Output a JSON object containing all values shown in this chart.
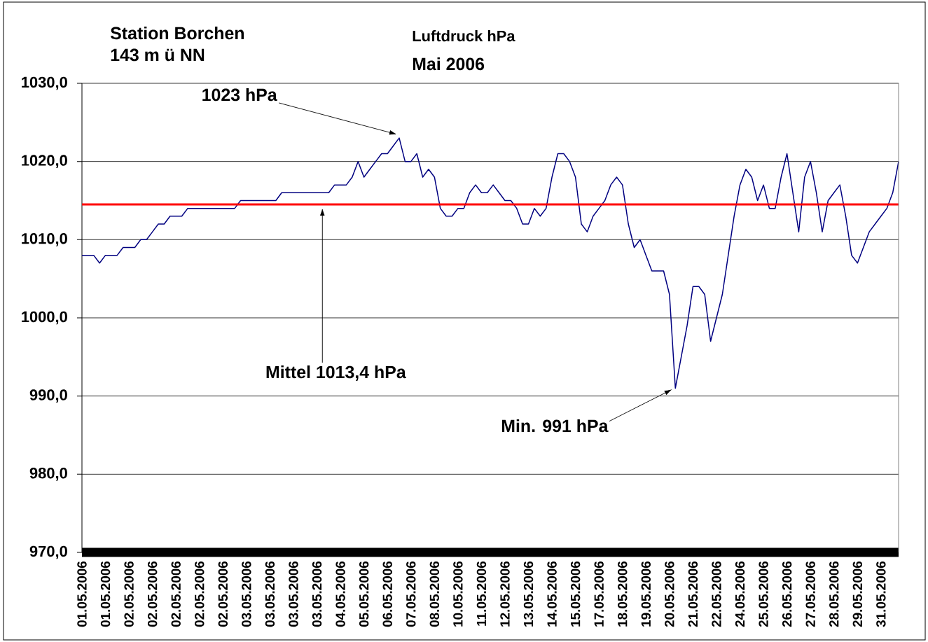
{
  "chart_data": {
    "type": "line",
    "title": "Luftdruck hPa",
    "subtitle": "Mai 2006",
    "categories": [
      "01.05.2006",
      null,
      null,
      null,
      "01.05.2006",
      null,
      null,
      null,
      "02.05.2006",
      null,
      null,
      null,
      "02.05.2006",
      null,
      null,
      null,
      "02.05.2006",
      null,
      null,
      null,
      "02.05.2006",
      null,
      null,
      null,
      "02.05.2006",
      null,
      null,
      null,
      "03.05.2006",
      null,
      null,
      null,
      "03.05.2006",
      null,
      null,
      null,
      "03.05.2006",
      null,
      null,
      null,
      "03.05.2006",
      null,
      null,
      null,
      "04.05.2006",
      null,
      null,
      null,
      "05.05.2006",
      null,
      null,
      null,
      "06.05.2006",
      null,
      null,
      null,
      "07.05.2006",
      null,
      null,
      null,
      "08.05.2006",
      null,
      null,
      null,
      "10.05.2006",
      null,
      null,
      null,
      "11.05.2006",
      null,
      null,
      null,
      "12.05.2006",
      null,
      null,
      null,
      "13.05.2006",
      null,
      null,
      null,
      "14.05.2006",
      null,
      null,
      null,
      "15.05.2006",
      null,
      null,
      null,
      "17.05.2006",
      null,
      null,
      null,
      "18.05.2006",
      null,
      null,
      null,
      "19.05.2006",
      null,
      null,
      null,
      "20.05.2006",
      null,
      null,
      null,
      "21.05.2006",
      null,
      null,
      null,
      "22.05.2006",
      null,
      null,
      null,
      "24.05.2006",
      null,
      null,
      null,
      "25.05.2006",
      null,
      null,
      null,
      "26.05.2006",
      null,
      null,
      null,
      "27.05.2006",
      null,
      null,
      null,
      "28.05.2006",
      null,
      null,
      null,
      "29.05.2006",
      null,
      null,
      null,
      "31.05.2006",
      null,
      null,
      null
    ],
    "series": [
      {
        "color": "#000080",
        "values": [
          1008,
          1008,
          1008,
          1007,
          1008,
          1008,
          1008,
          1009,
          1009,
          1009,
          1010,
          1010,
          1011,
          1012,
          1012,
          1013,
          1013,
          1013,
          1014,
          1014,
          1014,
          1014,
          1014,
          1014,
          1014,
          1014,
          1014,
          1015,
          1015,
          1015,
          1015,
          1015,
          1015,
          1015,
          1016,
          1016,
          1016,
          1016,
          1016,
          1016,
          1016,
          1016,
          1016,
          1017,
          1017,
          1017,
          1018,
          1020,
          1018,
          1019,
          1020,
          1021,
          1021,
          1022,
          1023,
          1020,
          1020,
          1021,
          1018,
          1019,
          1018,
          1014,
          1013,
          1013,
          1014,
          1014,
          1016,
          1017,
          1016,
          1016,
          1017,
          1016,
          1015,
          1015,
          1014,
          1012,
          1012,
          1014,
          1013,
          1014,
          1018,
          1021,
          1021,
          1020,
          1018,
          1012,
          1011,
          1013,
          1014,
          1015,
          1017,
          1018,
          1017,
          1012,
          1009,
          1010,
          1008,
          1006,
          1006,
          1006,
          1003,
          991,
          995,
          999,
          1004,
          1004,
          1003,
          997,
          1000,
          1003,
          1008,
          1013,
          1017,
          1019,
          1018,
          1015,
          1017,
          1014,
          1014,
          1018,
          1021,
          1016,
          1011,
          1018,
          1020,
          1016,
          1011,
          1015,
          1016,
          1017,
          1013,
          1008,
          1007,
          1009,
          1011,
          1012,
          1013,
          1014,
          1016,
          1020
        ]
      }
    ],
    "ylim": [
      970,
      1030
    ],
    "yticks": [
      {
        "value": 970,
        "label": "970,0"
      },
      {
        "value": 980,
        "label": "980,0"
      },
      {
        "value": 990,
        "label": "990,0"
      },
      {
        "value": 1000,
        "label": "1000,0"
      },
      {
        "value": 1010,
        "label": "1010,0"
      },
      {
        "value": 1020,
        "label": "1020,0"
      },
      {
        "value": 1030,
        "label": "1030,0"
      }
    ],
    "grid": "y",
    "marker": "none",
    "line_style": "solid",
    "ref_lines": [
      {
        "axis": "y",
        "value": 1014.5,
        "color": "#ff0000"
      }
    ],
    "annotations": [
      "Station Borchen",
      "143 m ü NN",
      "1023 hPa",
      "Mittel 1013,4 hPa",
      "Min. 991 hPa"
    ]
  }
}
